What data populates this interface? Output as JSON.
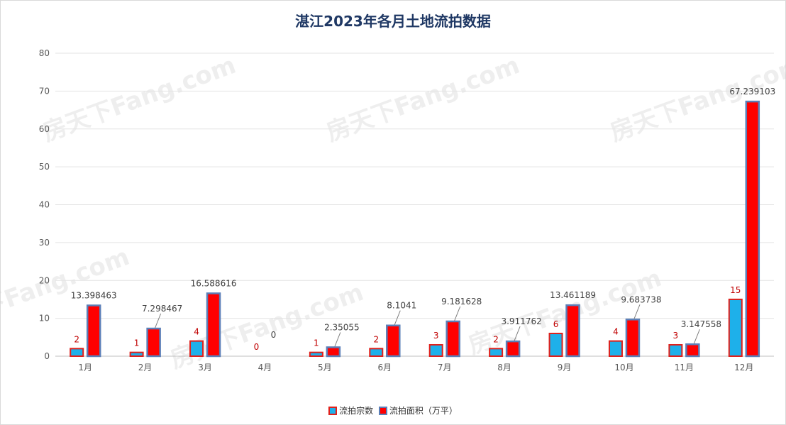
{
  "chart_data": {
    "type": "bar",
    "title": "湛江2023年各月土地流拍数据",
    "categories": [
      "1月",
      "2月",
      "3月",
      "4月",
      "5月",
      "6月",
      "7月",
      "8月",
      "9月",
      "10月",
      "11月",
      "12月"
    ],
    "series": [
      {
        "name": "流拍宗数",
        "values": [
          2,
          1,
          4,
          0,
          1,
          2,
          3,
          2,
          6,
          4,
          3,
          15
        ],
        "labels": [
          "2",
          "1",
          "4",
          "0",
          "1",
          "2",
          "3",
          "2",
          "6",
          "4",
          "3",
          "15"
        ],
        "fill": "#1eb0ea",
        "stroke": "#e0201b",
        "label_color": "#c00000"
      },
      {
        "name": "流拍面积（万平）",
        "values": [
          13.398463,
          7.298467,
          16.588616,
          0,
          2.35055,
          8.1041,
          9.181628,
          3.911762,
          13.461189,
          9.683738,
          3.147558,
          67.239103
        ],
        "labels": [
          "13.398463",
          "7.298467",
          "16.588616",
          "0",
          "2.35055",
          "8.1041",
          "9.181628",
          "3.911762",
          "13.461189",
          "9.683738",
          "3.147558",
          "67.239103"
        ],
        "fill": "#ff0000",
        "stroke": "#5b7fb8",
        "label_color": "#404040"
      }
    ],
    "ylim": [
      0,
      80
    ],
    "yticks": [
      "0",
      "10",
      "20",
      "30",
      "40",
      "50",
      "60",
      "70",
      "80"
    ],
    "grid": true,
    "legend": "bottom"
  },
  "watermark": "房天下Fang.com"
}
